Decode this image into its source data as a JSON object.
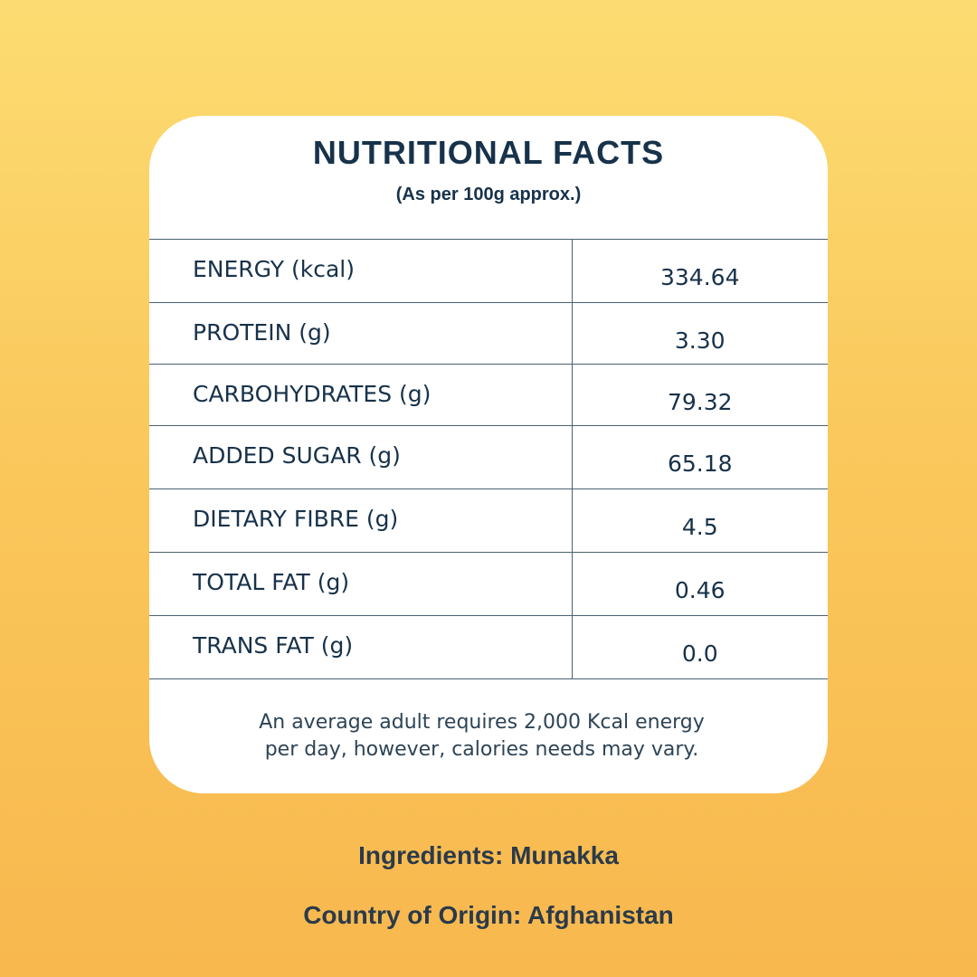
{
  "card": {
    "title": "NUTRITIONAL FACTS",
    "subtitle": "(As per 100g approx.)"
  },
  "nutrients": [
    {
      "label": "ENERGY (kcal)",
      "value": "334.64"
    },
    {
      "label": "PROTEIN (g)",
      "value": "3.30"
    },
    {
      "label": "CARBOHYDRATES (g)",
      "value": "79.32"
    },
    {
      "label": "ADDED SUGAR (g)",
      "value": "65.18"
    },
    {
      "label": "DIETARY FIBRE (g)",
      "value": "4.5"
    },
    {
      "label": "TOTAL FAT (g)",
      "value": "0.46"
    },
    {
      "label": "TRANS FAT (g)",
      "value": "0.0"
    }
  ],
  "note": {
    "line1": "An average adult requires 2,000 Kcal energy",
    "line2": "per day, however, calories needs may vary."
  },
  "footer": {
    "ingredients": "Ingredients: Munakka",
    "origin": "Country of Origin: Afghanistan"
  },
  "colors": {
    "text": "#17324a",
    "background_top": "#fcdc72",
    "background_bottom": "#f8b84e",
    "card": "#ffffff"
  }
}
